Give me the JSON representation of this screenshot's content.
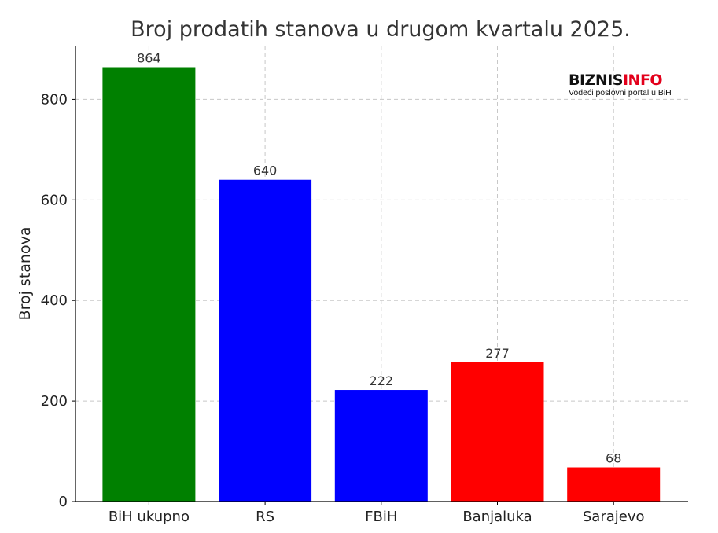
{
  "chart_data": {
    "type": "bar",
    "title": "Broj prodatih stanova u drugom kvartalu 2025.",
    "xlabel": "",
    "ylabel": "Broj stanova",
    "categories": [
      "BiH ukupno",
      "RS",
      "FBiH",
      "Banjaluka",
      "Sarajevo"
    ],
    "values": [
      864,
      640,
      222,
      277,
      68
    ],
    "data_labels": [
      "864",
      "640",
      "222",
      "277",
      "68"
    ],
    "bar_colors": [
      "#008000",
      "#0000ff",
      "#0000ff",
      "#ff0000",
      "#ff0000"
    ],
    "ylim": [
      0,
      907
    ],
    "yticks": [
      0,
      200,
      400,
      600,
      800
    ],
    "grid": true,
    "legend": "none"
  },
  "watermark": {
    "logo_dark": "BIZNIS",
    "logo_accent": "INFO",
    "logo_dark_color": "#111111",
    "logo_accent_color": "#e3001b",
    "tagline": "Vodeći poslovni portal u BiH"
  }
}
